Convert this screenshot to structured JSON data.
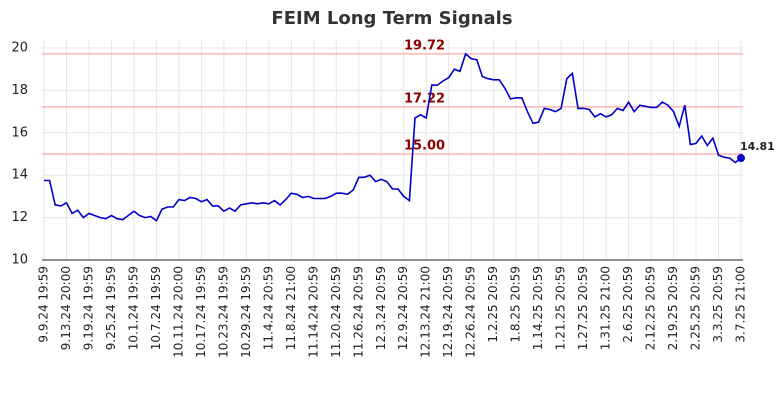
{
  "chart_data": {
    "type": "line",
    "title": "FEIM Long Term Signals",
    "categories": [
      "9.9.24 19:59",
      null,
      null,
      null,
      "9.13.24 20:00",
      null,
      null,
      null,
      "9.19.24 19:59",
      null,
      null,
      null,
      "9.25.24 19:59",
      null,
      null,
      null,
      "10.1.24 19:59",
      null,
      null,
      null,
      "10.7.24 19:59",
      null,
      null,
      null,
      "10.11.24 20:00",
      null,
      null,
      null,
      "10.17.24 19:59",
      null,
      null,
      null,
      "10.23.24 19:59",
      null,
      null,
      null,
      "10.29.24 19:59",
      null,
      null,
      null,
      "11.4.24 20:59",
      null,
      null,
      null,
      "11.8.24 21:00",
      null,
      null,
      null,
      "11.14.24 20:59",
      null,
      null,
      null,
      "11.20.24 20:59",
      null,
      null,
      null,
      "11.26.24 20:59",
      null,
      null,
      null,
      "12.3.24 20:59",
      null,
      null,
      null,
      "12.9.24 20:59",
      null,
      null,
      null,
      "12.13.24 21:00",
      null,
      null,
      null,
      "12.19.24 20:59",
      null,
      null,
      null,
      "12.26.24 20:59",
      null,
      null,
      null,
      "1.2.25 20:59",
      null,
      null,
      null,
      "1.8.25 20:59",
      null,
      null,
      null,
      "1.14.25 20:59",
      null,
      null,
      null,
      "1.21.25 20:59",
      null,
      null,
      null,
      "1.27.25 20:59",
      null,
      null,
      null,
      "1.31.25 21:00",
      null,
      null,
      null,
      "2.6.25 20:59",
      null,
      null,
      null,
      "2.12.25 20:59",
      null,
      null,
      null,
      "2.19.25 20:59",
      null,
      null,
      null,
      "2.25.25 20:59",
      null,
      null,
      null,
      "3.3.25 20:59",
      null,
      null,
      null,
      "3.7.25 21:00"
    ],
    "values": [
      13.75,
      13.75,
      12.6,
      12.55,
      12.7,
      12.2,
      12.35,
      12.0,
      12.2,
      12.1,
      12.0,
      11.95,
      12.1,
      11.95,
      11.9,
      12.1,
      12.3,
      12.1,
      12.0,
      12.05,
      11.85,
      12.4,
      12.5,
      12.5,
      12.85,
      12.8,
      12.95,
      12.9,
      12.75,
      12.85,
      12.55,
      12.55,
      12.3,
      12.45,
      12.3,
      12.6,
      12.65,
      12.7,
      12.65,
      12.7,
      12.65,
      12.8,
      12.6,
      12.85,
      13.15,
      13.1,
      12.95,
      13.0,
      12.9,
      12.9,
      12.9,
      13.0,
      13.15,
      13.15,
      13.1,
      13.3,
      13.9,
      13.9,
      14.0,
      13.7,
      13.8,
      13.7,
      13.35,
      13.35,
      13.0,
      12.8,
      16.7,
      16.85,
      16.7,
      18.25,
      18.25,
      18.45,
      18.6,
      19.0,
      18.9,
      19.72,
      19.5,
      19.45,
      18.65,
      18.55,
      18.5,
      18.5,
      18.1,
      17.6,
      17.65,
      17.65,
      17.0,
      16.45,
      16.5,
      17.15,
      17.1,
      17.0,
      17.15,
      18.55,
      18.8,
      17.15,
      17.15,
      17.1,
      16.75,
      16.9,
      16.75,
      16.85,
      17.15,
      17.05,
      17.45,
      17.0,
      17.3,
      17.25,
      17.2,
      17.2,
      17.45,
      17.3,
      17.0,
      16.3,
      17.3,
      15.45,
      15.5,
      15.85,
      15.4,
      15.75,
      14.95,
      14.85,
      14.8,
      14.6,
      14.81
    ],
    "color": "#0000cc",
    "hlines": [
      {
        "value": 19.72,
        "label": "19.72"
      },
      {
        "value": 17.22,
        "label": "17.22"
      },
      {
        "value": 15,
        "label": "15.00"
      }
    ],
    "hline_color": "#ffb3b3",
    "hline_label_color": "#8b0000",
    "ylim": [
      10,
      20
    ],
    "yticks": [
      10,
      12,
      14,
      16,
      18,
      20
    ],
    "grid": true
  }
}
